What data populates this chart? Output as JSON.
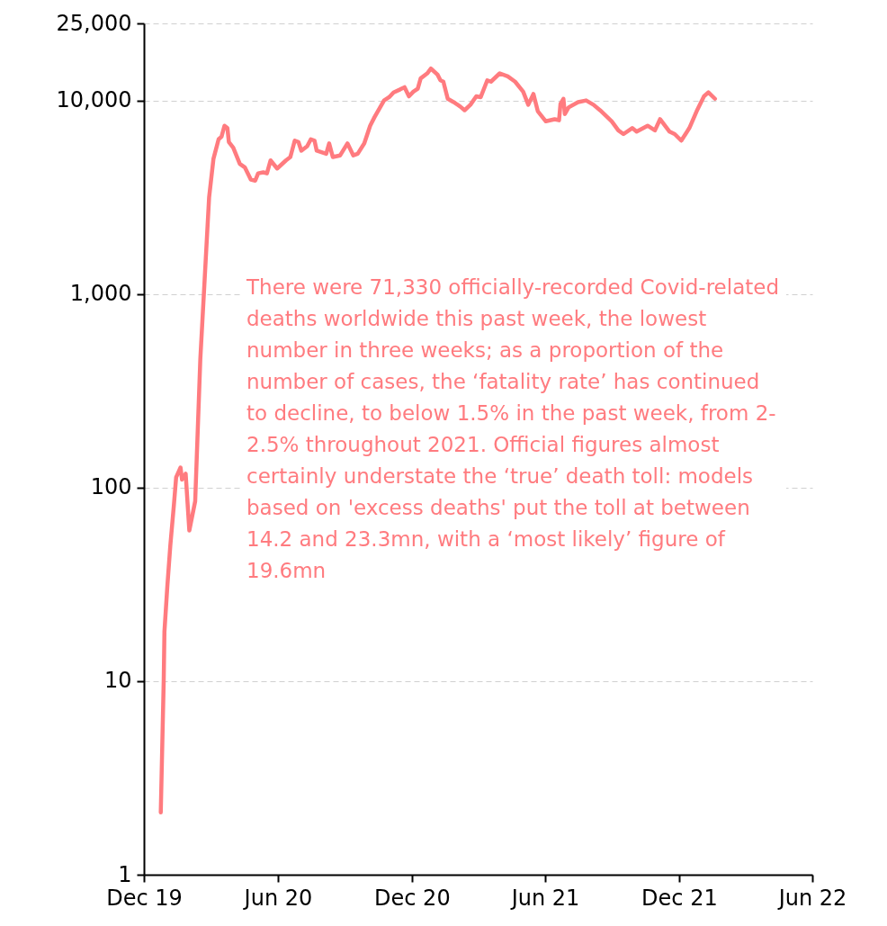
{
  "chart_data": {
    "type": "line",
    "log": true,
    "grid": "y",
    "line_style": "solid",
    "xlim": [
      "2019-12-01",
      "2022-06-01"
    ],
    "xticks": [
      {
        "value": "2019-12-01",
        "label": "Dec 19"
      },
      {
        "value": "2020-06-01",
        "label": "Jun 20"
      },
      {
        "value": "2020-12-01",
        "label": "Dec 20"
      },
      {
        "value": "2021-06-01",
        "label": "Jun 21"
      },
      {
        "value": "2021-12-01",
        "label": "Dec 21"
      },
      {
        "value": "2022-06-01",
        "label": "Jun 22"
      }
    ],
    "ylim": [
      1,
      25000
    ],
    "yticks": [
      1,
      10,
      100,
      {
        "value": 1000,
        "label": "1,000"
      },
      {
        "value": 10000,
        "label": "10,000"
      },
      {
        "value": 25000,
        "label": "25,000"
      }
    ],
    "annotations": [
      {
        "text": "There were 71,330 officially-recorded Covid-related deaths worldwide this past week, the lowest number in three weeks; as a proportion of the number of cases, the ‘fatality rate’ has continued to decline, to below 1.5% in the past week, from 2-2.5% throughout 2021. Official figures almost certainly understate the ‘true’ death toll: models based on 'excess deaths' put the toll at between 14.2 and 23.3mn, with a ‘most likely’ figure of 19.6mn"
      }
    ],
    "x": [
      "2019-12-24",
      "2019-12-28",
      "2019-12-29",
      "2020-01-02",
      "2020-01-06",
      "2020-01-11",
      "2020-01-14",
      "2020-01-20",
      "2020-01-22",
      "2020-01-27",
      "2020-02-01",
      "2020-02-09",
      "2020-02-16",
      "2020-02-22",
      "2020-02-28",
      "2020-03-05",
      "2020-03-12",
      "2020-03-16",
      "2020-03-20",
      "2020-03-24",
      "2020-03-26",
      "2020-04-01",
      "2020-04-10",
      "2020-04-17",
      "2020-04-25",
      "2020-05-01",
      "2020-05-05",
      "2020-05-12",
      "2020-05-17",
      "2020-05-22",
      "2020-05-31",
      "2020-06-12",
      "2020-06-18",
      "2020-06-24",
      "2020-06-29",
      "2020-07-03",
      "2020-07-11",
      "2020-07-16",
      "2020-07-21",
      "2020-07-24",
      "2020-08-06",
      "2020-08-10",
      "2020-08-15",
      "2020-08-25",
      "2020-09-04",
      "2020-09-12",
      "2020-09-18",
      "2020-09-27",
      "2020-10-05",
      "2020-10-11",
      "2020-10-24",
      "2020-10-31",
      "2020-11-06",
      "2020-11-15",
      "2020-11-21",
      "2020-11-27",
      "2020-12-03",
      "2020-12-09",
      "2020-12-13",
      "2020-12-22",
      "2020-12-27",
      "2021-01-05",
      "2021-01-09",
      "2021-01-13",
      "2021-01-19",
      "2021-01-27",
      "2021-02-05",
      "2021-02-11",
      "2021-02-19",
      "2021-02-27",
      "2021-03-05",
      "2021-03-14",
      "2021-03-19",
      "2021-03-31",
      "2021-04-11",
      "2021-04-21",
      "2021-05-02",
      "2021-05-09",
      "2021-05-16",
      "2021-05-22",
      "2021-06-02",
      "2021-06-14",
      "2021-06-20",
      "2021-06-22",
      "2021-06-26",
      "2021-06-28",
      "2021-07-03",
      "2021-07-16",
      "2021-07-27",
      "2021-08-06",
      "2021-08-15",
      "2021-08-31",
      "2021-09-09",
      "2021-09-16",
      "2021-09-28",
      "2021-10-04",
      "2021-10-19",
      "2021-10-29",
      "2021-11-05",
      "2021-11-18",
      "2021-11-25",
      "2021-12-04",
      "2021-12-15",
      "2021-12-25",
      "2022-01-04",
      "2022-01-10",
      "2022-01-19"
    ],
    "series": [
      {
        "color": "#ff7b7f",
        "values": [
          2.1,
          10,
          18,
          31,
          50,
          82,
          113,
          127,
          110,
          118,
          60,
          85,
          460,
          1200,
          3150,
          5000,
          6300,
          6500,
          7400,
          7200,
          6100,
          5700,
          4700,
          4500,
          3900,
          3850,
          4200,
          4250,
          4200,
          4900,
          4450,
          4900,
          5100,
          6200,
          6100,
          5500,
          5800,
          6300,
          6200,
          5500,
          5300,
          6000,
          5100,
          5200,
          6000,
          5200,
          5300,
          6000,
          7400,
          8200,
          10000,
          10400,
          11000,
          11400,
          11700,
          10500,
          11100,
          11500,
          13000,
          13800,
          14600,
          13600,
          12700,
          12500,
          10200,
          9800,
          9300,
          8900,
          9500,
          10500,
          10400,
          12700,
          12500,
          13800,
          13300,
          12500,
          11100,
          9500,
          10800,
          8800,
          7800,
          8000,
          7900,
          9600,
          10200,
          8500,
          9200,
          9800,
          10000,
          9500,
          8900,
          7800,
          7000,
          6700,
          7200,
          6900,
          7400,
          7000,
          8000,
          6900,
          6700,
          6200,
          7200,
          8800,
          10500,
          11000,
          10200
        ]
      }
    ]
  }
}
